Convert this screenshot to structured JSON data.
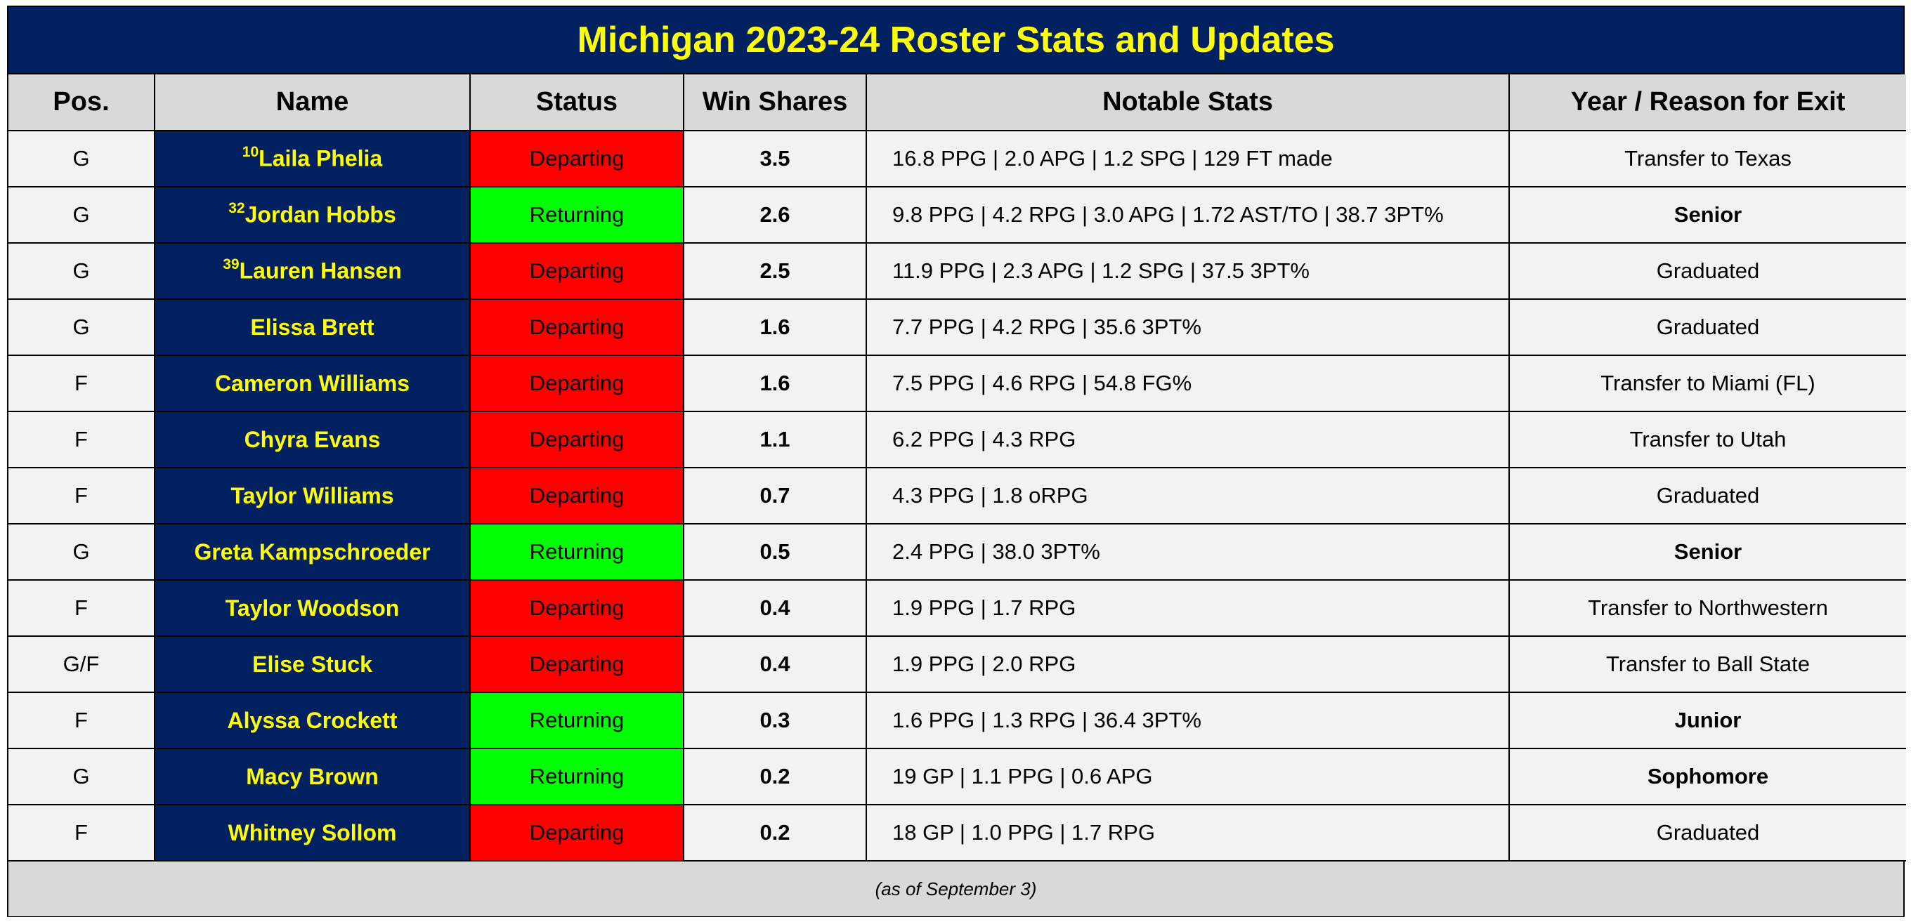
{
  "title": "Michigan 2023-24 Roster Stats and Updates",
  "headers": {
    "pos": "Pos.",
    "name": "Name",
    "status": "Status",
    "win_shares": "Win Shares",
    "stats": "Notable Stats",
    "year": "Year / Reason for Exit"
  },
  "rows": [
    {
      "pos": "G",
      "number": "10",
      "name": "Laila Phelia",
      "status": "Departing",
      "ws": "3.5",
      "stats": "16.8 PPG | 2.0 APG | 1.2 SPG | 129 FT made",
      "year": "Transfer to Texas"
    },
    {
      "pos": "G",
      "number": "32",
      "name": "Jordan Hobbs",
      "status": "Returning",
      "ws": "2.6",
      "stats": "9.8 PPG | 4.2 RPG | 3.0 APG | 1.72 AST/TO | 38.7 3PT%",
      "year": "Senior"
    },
    {
      "pos": "G",
      "number": "39",
      "name": "Lauren Hansen",
      "status": "Departing",
      "ws": "2.5",
      "stats": "11.9 PPG | 2.3 APG | 1.2 SPG | 37.5 3PT%",
      "year": "Graduated"
    },
    {
      "pos": "G",
      "number": "",
      "name": "Elissa Brett",
      "status": "Departing",
      "ws": "1.6",
      "stats": "7.7 PPG | 4.2 RPG | 35.6 3PT%",
      "year": "Graduated"
    },
    {
      "pos": "F",
      "number": "",
      "name": "Cameron Williams",
      "status": "Departing",
      "ws": "1.6",
      "stats": "7.5 PPG | 4.6 RPG | 54.8 FG%",
      "year": "Transfer to Miami (FL)"
    },
    {
      "pos": "F",
      "number": "",
      "name": "Chyra Evans",
      "status": "Departing",
      "ws": "1.1",
      "stats": "6.2 PPG | 4.3 RPG",
      "year": "Transfer to Utah"
    },
    {
      "pos": "F",
      "number": "",
      "name": "Taylor Williams",
      "status": "Departing",
      "ws": "0.7",
      "stats": "4.3 PPG | 1.8 oRPG",
      "year": "Graduated"
    },
    {
      "pos": "G",
      "number": "",
      "name": "Greta Kampschroeder",
      "status": "Returning",
      "ws": "0.5",
      "stats": "2.4 PPG | 38.0 3PT%",
      "year": "Senior"
    },
    {
      "pos": "F",
      "number": "",
      "name": "Taylor Woodson",
      "status": "Departing",
      "ws": "0.4",
      "stats": "1.9 PPG | 1.7 RPG",
      "year": "Transfer to Northwestern"
    },
    {
      "pos": "G/F",
      "number": "",
      "name": "Elise Stuck",
      "status": "Departing",
      "ws": "0.4",
      "stats": "1.9 PPG | 2.0 RPG",
      "year": "Transfer to Ball State"
    },
    {
      "pos": "F",
      "number": "",
      "name": "Alyssa Crockett",
      "status": "Returning",
      "ws": "0.3",
      "stats": "1.6 PPG | 1.3 RPG | 36.4 3PT%",
      "year": "Junior"
    },
    {
      "pos": "G",
      "number": "",
      "name": "Macy Brown",
      "status": "Returning",
      "ws": "0.2",
      "stats": "19 GP | 1.1 PPG | 0.6 APG",
      "year": "Sophomore"
    },
    {
      "pos": "F",
      "number": "",
      "name": "Whitney Sollom",
      "status": "Departing",
      "ws": "0.2",
      "stats": "18 GP | 1.0 PPG | 1.7 RPG",
      "year": "Graduated"
    }
  ],
  "footer": "(as of September 3)",
  "colors": {
    "header_bg": "#002060",
    "title_text": "#ffff00",
    "departing": "#ff0000",
    "returning": "#00ff00",
    "column_header_bg": "#d9d9d9",
    "cell_bg": "#f2f2f2"
  }
}
